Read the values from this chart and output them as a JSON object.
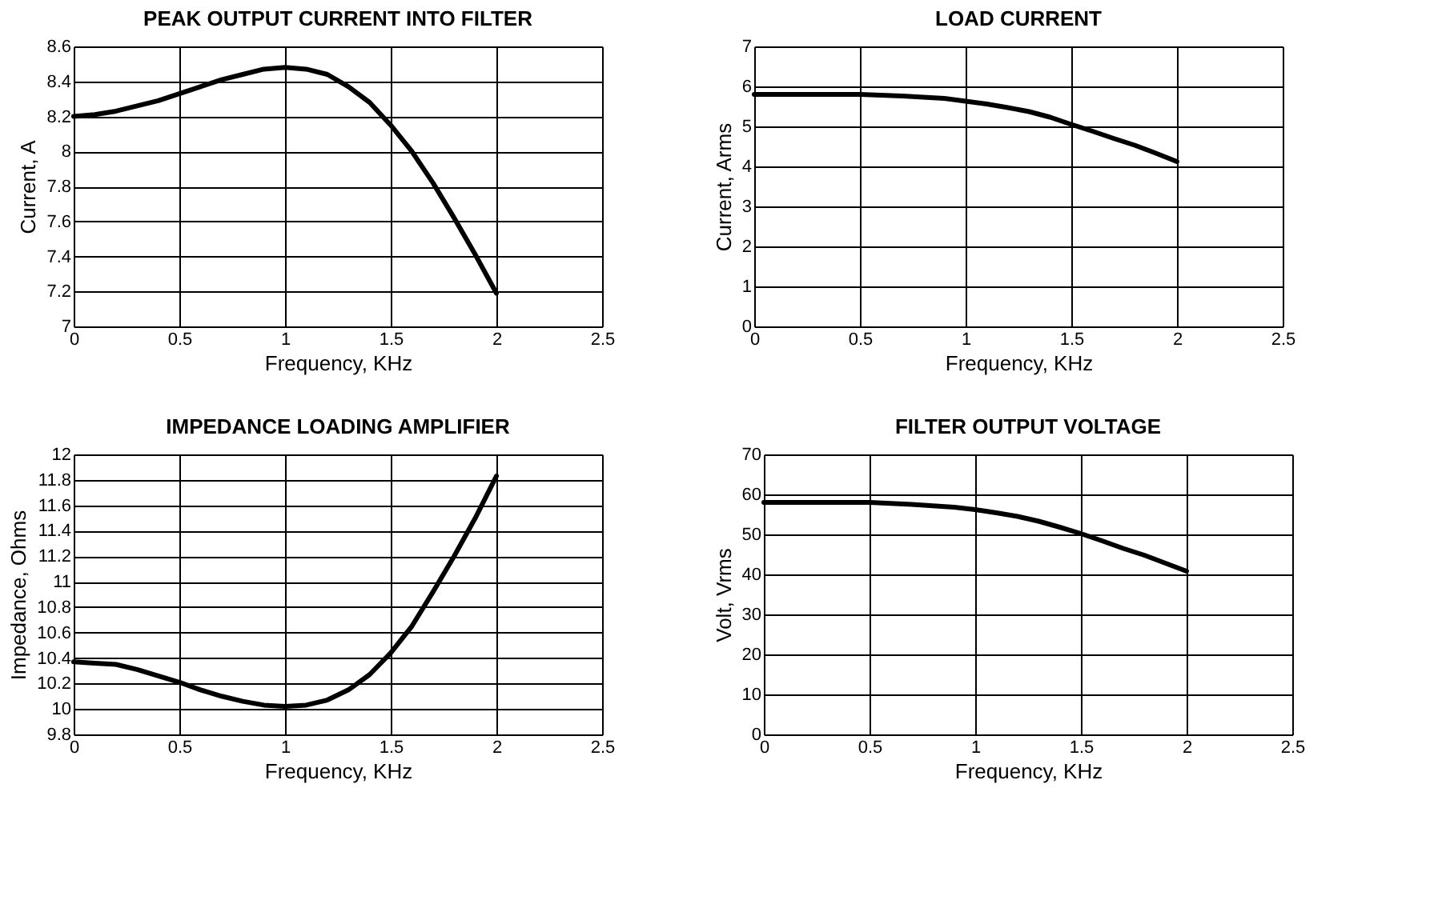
{
  "chart_data": [
    {
      "type": "line",
      "title": "PEAK OUTPUT CURRENT INTO FILTER",
      "xlabel": "Frequency, KHz",
      "ylabel": "Current, A",
      "x": [
        0,
        0.1,
        0.2,
        0.3,
        0.4,
        0.5,
        0.6,
        0.7,
        0.8,
        0.9,
        1.0,
        1.1,
        1.2,
        1.3,
        1.4,
        1.5,
        1.6,
        1.7,
        1.8,
        1.9,
        2.0
      ],
      "series": [
        {
          "color": "#000000",
          "values": [
            8.2,
            8.21,
            8.23,
            8.26,
            8.29,
            8.33,
            8.37,
            8.41,
            8.44,
            8.47,
            8.48,
            8.47,
            8.44,
            8.37,
            8.28,
            8.15,
            8.0,
            7.82,
            7.62,
            7.41,
            7.19
          ]
        }
      ],
      "xlim": [
        0,
        2.5
      ],
      "xticks": [
        0,
        0.5,
        1,
        1.5,
        2,
        2.5
      ],
      "ylim": [
        7,
        8.6
      ],
      "yticks": [
        7,
        7.2,
        7.4,
        7.6,
        7.8,
        8,
        8.2,
        8.4,
        8.6
      ],
      "grid": true,
      "marker": "none",
      "line_style": "solid"
    },
    {
      "type": "line",
      "title": "LOAD CURRENT",
      "xlabel": "Frequency, KHz",
      "ylabel": "Current, Arms",
      "x": [
        0,
        0.5,
        0.7,
        0.9,
        1.0,
        1.1,
        1.2,
        1.3,
        1.4,
        1.5,
        1.6,
        1.7,
        1.8,
        1.9,
        2.0
      ],
      "series": [
        {
          "color": "#000000",
          "values": [
            5.8,
            5.8,
            5.76,
            5.7,
            5.63,
            5.56,
            5.47,
            5.37,
            5.23,
            5.05,
            4.88,
            4.7,
            4.53,
            4.33,
            4.12
          ]
        }
      ],
      "xlim": [
        0,
        2.5
      ],
      "xticks": [
        0,
        0.5,
        1,
        1.5,
        2,
        2.5
      ],
      "ylim": [
        0,
        7
      ],
      "yticks": [
        0,
        1,
        2,
        3,
        4,
        5,
        6,
        7
      ],
      "grid": true,
      "marker": "none",
      "line_style": "solid"
    },
    {
      "type": "line",
      "title": "IMPEDANCE LOADING AMPLIFIER",
      "xlabel": "Frequency, KHz",
      "ylabel": "Impedance, Ohms",
      "x": [
        0,
        0.1,
        0.2,
        0.3,
        0.4,
        0.5,
        0.6,
        0.7,
        0.8,
        0.9,
        1.0,
        1.1,
        1.2,
        1.3,
        1.4,
        1.5,
        1.6,
        1.7,
        1.8,
        1.9,
        2.0
      ],
      "series": [
        {
          "color": "#000000",
          "values": [
            10.37,
            10.36,
            10.35,
            10.31,
            10.26,
            10.21,
            10.15,
            10.1,
            10.06,
            10.03,
            10.02,
            10.03,
            10.07,
            10.15,
            10.27,
            10.44,
            10.65,
            10.92,
            11.2,
            11.5,
            11.83
          ]
        }
      ],
      "xlim": [
        0,
        2.5
      ],
      "xticks": [
        0,
        0.5,
        1,
        1.5,
        2,
        2.5
      ],
      "ylim": [
        9.8,
        12
      ],
      "yticks": [
        9.8,
        10,
        10.2,
        10.4,
        10.6,
        10.8,
        11,
        11.2,
        11.4,
        11.6,
        11.8,
        12
      ],
      "grid": true,
      "marker": "none",
      "line_style": "solid"
    },
    {
      "type": "line",
      "title": "FILTER OUTPUT VOLTAGE",
      "xlabel": "Frequency, KHz",
      "ylabel": "Volt, Vrms",
      "x": [
        0,
        0.5,
        0.7,
        0.9,
        1.0,
        1.1,
        1.2,
        1.3,
        1.4,
        1.5,
        1.6,
        1.7,
        1.8,
        1.9,
        2.0
      ],
      "series": [
        {
          "color": "#000000",
          "values": [
            58,
            58,
            57.5,
            56.8,
            56.2,
            55.4,
            54.5,
            53.3,
            51.8,
            50.2,
            48.4,
            46.5,
            44.8,
            42.8,
            40.8
          ]
        }
      ],
      "xlim": [
        0,
        2.5
      ],
      "xticks": [
        0,
        0.5,
        1,
        1.5,
        2,
        2.5
      ],
      "ylim": [
        0,
        70
      ],
      "yticks": [
        0,
        10,
        20,
        30,
        40,
        50,
        60,
        70
      ],
      "grid": true,
      "marker": "none",
      "line_style": "solid"
    }
  ]
}
